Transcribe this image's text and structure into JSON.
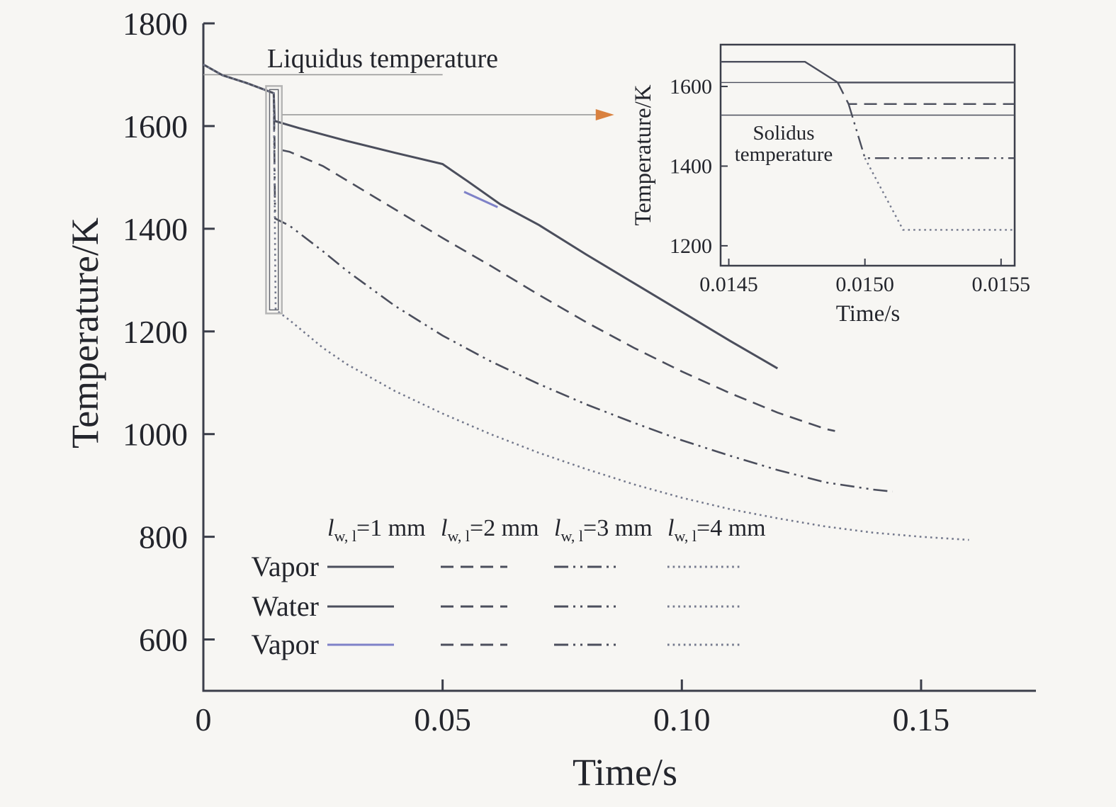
{
  "figure": {
    "background": "#f7f6f3",
    "axis_color": "#3b3e4a",
    "text_color": "#23252c",
    "line_color": "#4b4e5c",
    "dotted_color": "#73788c",
    "purple_color": "#7f82c8",
    "arrow_color": "#d9813f",
    "annotation_gray": "#9a9a9a"
  },
  "chart_data": {
    "type": "line",
    "title": "",
    "xlabel": "Time/s",
    "ylabel": "Temperature/K",
    "xlim": [
      0,
      0.174
    ],
    "ylim": [
      500,
      1800
    ],
    "grid": false,
    "xticks": {
      "values": [
        0,
        0.05,
        0.1,
        0.15
      ],
      "labels": [
        "0",
        "0.05",
        "0.10",
        "0.15"
      ]
    },
    "yticks": {
      "values": [
        600,
        800,
        1000,
        1200,
        1400,
        1600,
        1800
      ],
      "labels": [
        "600",
        "800",
        "1000",
        "1200",
        "1400",
        "1600",
        "1800"
      ]
    },
    "annotations": {
      "liquidus": {
        "label": "Liquidus temperature",
        "temperature": 1700,
        "x_span": [
          0,
          0.05
        ]
      },
      "zoom_box": {
        "x_span": [
          0.0131,
          0.0164
        ],
        "y_span": [
          1235,
          1678
        ]
      },
      "arrow": {
        "temperature": 1622,
        "x_span": [
          0.0165,
          0.082
        ]
      }
    },
    "series": [
      {
        "name": "lwl-1-mm",
        "label": "l w,l = 1 mm",
        "style": "solid",
        "color": "line",
        "points": [
          [
            0,
            1720
          ],
          [
            0.004,
            1699
          ],
          [
            0.009,
            1684
          ],
          [
            0.013,
            1670
          ],
          [
            0.0147,
            1664
          ],
          [
            0.0149,
            1610
          ],
          [
            0.02,
            1596
          ],
          [
            0.03,
            1571
          ],
          [
            0.04,
            1548
          ],
          [
            0.05,
            1526
          ],
          [
            0.055,
            1494
          ],
          [
            0.062,
            1448
          ],
          [
            0.07,
            1408
          ],
          [
            0.08,
            1350
          ],
          [
            0.09,
            1294
          ],
          [
            0.1,
            1238
          ],
          [
            0.11,
            1182
          ],
          [
            0.12,
            1128
          ]
        ]
      },
      {
        "name": "lwl-2-mm",
        "label": "l w,l = 2 mm",
        "style": "dashed",
        "color": "line",
        "points": [
          [
            0,
            1720
          ],
          [
            0.004,
            1699
          ],
          [
            0.009,
            1684
          ],
          [
            0.013,
            1670
          ],
          [
            0.0147,
            1664
          ],
          [
            0.0149,
            1556
          ],
          [
            0.018,
            1550
          ],
          [
            0.025,
            1522
          ],
          [
            0.03,
            1494
          ],
          [
            0.04,
            1438
          ],
          [
            0.05,
            1382
          ],
          [
            0.06,
            1328
          ],
          [
            0.07,
            1272
          ],
          [
            0.08,
            1218
          ],
          [
            0.09,
            1168
          ],
          [
            0.1,
            1122
          ],
          [
            0.11,
            1080
          ],
          [
            0.12,
            1042
          ],
          [
            0.13,
            1010
          ],
          [
            0.132,
            1006
          ]
        ]
      },
      {
        "name": "lwl-3-mm",
        "label": "l w,l = 3 mm",
        "style": "dashdotdot",
        "color": "line",
        "points": [
          [
            0,
            1720
          ],
          [
            0.004,
            1699
          ],
          [
            0.009,
            1684
          ],
          [
            0.013,
            1670
          ],
          [
            0.0147,
            1664
          ],
          [
            0.015,
            1420
          ],
          [
            0.018,
            1406
          ],
          [
            0.025,
            1356
          ],
          [
            0.03,
            1318
          ],
          [
            0.04,
            1250
          ],
          [
            0.05,
            1192
          ],
          [
            0.06,
            1142
          ],
          [
            0.07,
            1098
          ],
          [
            0.08,
            1058
          ],
          [
            0.09,
            1022
          ],
          [
            0.1,
            988
          ],
          [
            0.11,
            958
          ],
          [
            0.12,
            930
          ],
          [
            0.13,
            906
          ],
          [
            0.14,
            892
          ],
          [
            0.144,
            888
          ]
        ]
      },
      {
        "name": "lwl-4-mm",
        "label": "l w,l = 4 mm",
        "style": "dotted",
        "color": "dotted",
        "points": [
          [
            0,
            1720
          ],
          [
            0.004,
            1699
          ],
          [
            0.009,
            1684
          ],
          [
            0.013,
            1670
          ],
          [
            0.0147,
            1664
          ],
          [
            0.0151,
            1242
          ],
          [
            0.018,
            1222
          ],
          [
            0.025,
            1168
          ],
          [
            0.03,
            1136
          ],
          [
            0.04,
            1084
          ],
          [
            0.05,
            1040
          ],
          [
            0.06,
            1000
          ],
          [
            0.07,
            964
          ],
          [
            0.08,
            932
          ],
          [
            0.09,
            902
          ],
          [
            0.1,
            876
          ],
          [
            0.11,
            854
          ],
          [
            0.12,
            836
          ],
          [
            0.13,
            820
          ],
          [
            0.14,
            808
          ],
          [
            0.15,
            800
          ],
          [
            0.16,
            794
          ]
        ]
      },
      {
        "name": "vapor-phase-segment",
        "label": "vapor segment on 1 mm curve",
        "style": "solid",
        "color": "purple",
        "points": [
          [
            0.0545,
            1472
          ],
          [
            0.0615,
            1442
          ]
        ]
      }
    ],
    "inset": {
      "xlabel": "Time/s",
      "ylabel": "Temperature/K",
      "xlim": [
        0.01447,
        0.01555
      ],
      "ylim": [
        1150,
        1705
      ],
      "xticks": {
        "values": [
          0.0145,
          0.015,
          0.0155
        ],
        "labels": [
          "0.0145",
          "0.0150",
          "0.0155"
        ]
      },
      "yticks": {
        "values": [
          1200,
          1400,
          1600
        ],
        "labels": [
          "1200",
          "1400",
          "1600"
        ]
      },
      "reference_lines": [
        {
          "name": "plateau-1mm-line",
          "temperature": 1610
        },
        {
          "name": "solidus-line",
          "temperature": 1528
        }
      ],
      "solidus_label": {
        "lines": [
          "Solidus",
          "temperature"
        ]
      },
      "series": [
        {
          "name": "lwl-1-mm",
          "style": "solid",
          "color": "line",
          "points": [
            [
              0.01447,
              1662
            ],
            [
              0.01478,
              1662
            ],
            [
              0.0149,
              1610
            ],
            [
              0.01555,
              1610
            ]
          ]
        },
        {
          "name": "lwl-2-mm",
          "style": "dashed",
          "color": "line",
          "points": [
            [
              0.0149,
              1610
            ],
            [
              0.01494,
              1556
            ],
            [
              0.01555,
              1556
            ]
          ]
        },
        {
          "name": "lwl-3-mm",
          "style": "dashdotdot",
          "color": "line",
          "points": [
            [
              0.01494,
              1556
            ],
            [
              0.015,
              1420
            ],
            [
              0.01555,
              1420
            ]
          ]
        },
        {
          "name": "lwl-4-mm",
          "style": "dotted",
          "color": "dotted",
          "points": [
            [
              0.015,
              1420
            ],
            [
              0.01514,
              1240
            ],
            [
              0.01555,
              1240
            ]
          ]
        }
      ]
    },
    "legend": {
      "columns": [
        {
          "symbol": "l",
          "subscript": "w, l",
          "value": "=1 mm"
        },
        {
          "symbol": "l",
          "subscript": "w, l",
          "value": "=2 mm"
        },
        {
          "symbol": "l",
          "subscript": "w, l",
          "value": "=3 mm"
        },
        {
          "symbol": "l",
          "subscript": "w, l",
          "value": "=4 mm"
        }
      ],
      "rows": [
        {
          "label": "Vapor",
          "samples": [
            {
              "style": "solid",
              "color": "line"
            },
            {
              "style": "dashed",
              "color": "line"
            },
            {
              "style": "dashdotdot",
              "color": "line"
            },
            {
              "style": "dotted",
              "color": "dotted"
            }
          ]
        },
        {
          "label": "Water",
          "samples": [
            {
              "style": "solid",
              "color": "line"
            },
            {
              "style": "dashed",
              "color": "line"
            },
            {
              "style": "dashdotdot",
              "color": "line"
            },
            {
              "style": "dotted",
              "color": "dotted"
            }
          ]
        },
        {
          "label": "Vapor",
          "samples": [
            {
              "style": "solid",
              "color": "purple"
            },
            {
              "style": "dashed",
              "color": "line"
            },
            {
              "style": "dashdotdot",
              "color": "line"
            },
            {
              "style": "dotted",
              "color": "dotted"
            }
          ]
        }
      ]
    }
  }
}
